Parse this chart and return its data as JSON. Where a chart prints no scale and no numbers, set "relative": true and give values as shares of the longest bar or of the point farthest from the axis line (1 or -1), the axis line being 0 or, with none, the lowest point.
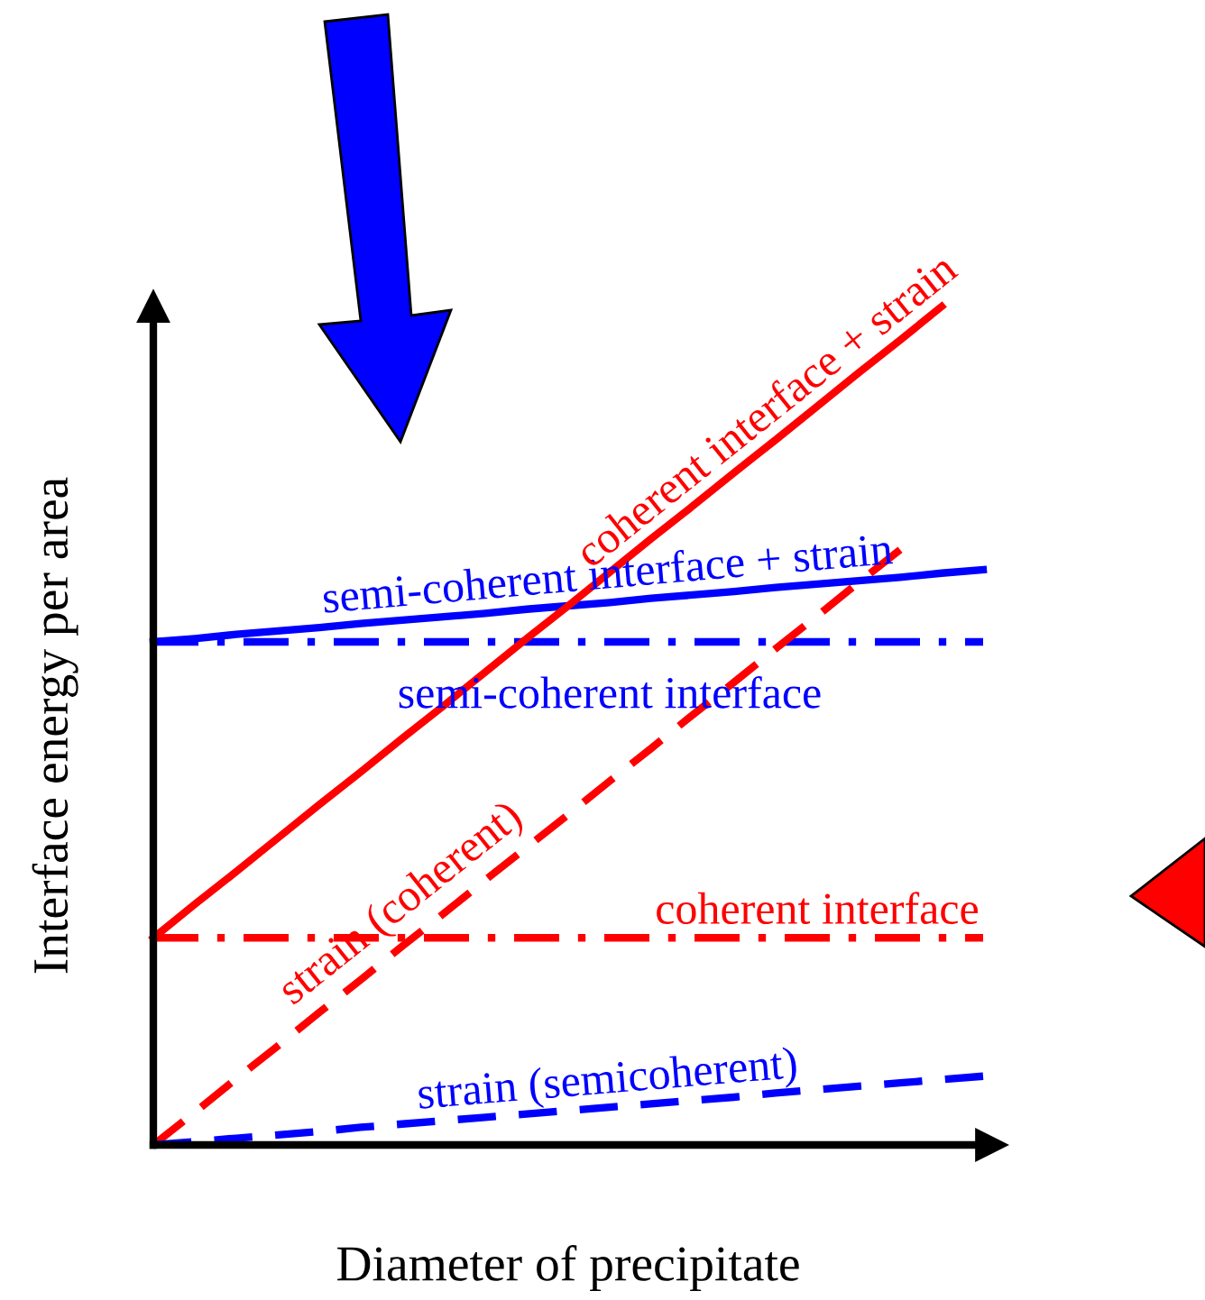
{
  "chart_data": {
    "type": "line",
    "relative": true,
    "xlabel": "Diameter of precipitate",
    "ylabel": "Interface energy per area",
    "categories": [
      null,
      null,
      null,
      null,
      null,
      null,
      null,
      null,
      null,
      null,
      null,
      null,
      null,
      null,
      null,
      null,
      null,
      null,
      null,
      null,
      null
    ],
    "series": [
      {
        "name": "semi-coherent interface + strain",
        "color": "#0000ff",
        "line_style": "solid",
        "values": [
          0.6,
          0.604,
          0.609,
          0.613,
          0.617,
          0.622,
          0.626,
          0.63,
          0.634,
          0.639,
          0.643,
          0.647,
          0.652,
          0.656,
          0.66,
          0.665,
          0.669,
          0.673,
          0.677,
          0.682,
          0.686
        ]
      },
      {
        "name": "semi-coherent interface",
        "color": "#0000ff",
        "line_style": "dashdot",
        "values": [
          0.6,
          0.6,
          0.6,
          0.6,
          0.6,
          0.6,
          0.6,
          0.6,
          0.6,
          0.6,
          0.6,
          0.6,
          0.6,
          0.6,
          0.6,
          0.6,
          0.6,
          0.6,
          0.6,
          0.6,
          0.6
        ]
      },
      {
        "name": "coherent interface + strain",
        "color": "#ff0000",
        "line_style": "solid",
        "values": [
          0.247,
          0.287,
          0.326,
          0.366,
          0.406,
          0.445,
          0.485,
          0.524,
          0.564,
          0.604,
          0.643,
          0.683,
          0.723,
          0.762,
          0.802,
          0.841,
          0.881,
          0.921,
          0.96,
          1.0,
          null
        ]
      },
      {
        "name": "coherent interface",
        "color": "#ff0000",
        "line_style": "dashdot",
        "values": [
          0.247,
          0.247,
          0.247,
          0.247,
          0.247,
          0.247,
          0.247,
          0.247,
          0.247,
          0.247,
          0.247,
          0.247,
          0.247,
          0.247,
          0.247,
          0.247,
          0.247,
          0.247,
          0.247,
          0.247,
          0.247
        ]
      },
      {
        "name": "strain (coherent)",
        "color": "#ff0000",
        "line_style": "dashed",
        "values": [
          0,
          0.039,
          0.079,
          0.118,
          0.158,
          0.197,
          0.237,
          0.276,
          0.316,
          0.355,
          0.394,
          0.434,
          0.473,
          0.513,
          0.552,
          0.592,
          0.631,
          0.671,
          0.71,
          null,
          null
        ]
      },
      {
        "name": "strain (semicoherent)",
        "color": "#0000ff",
        "line_style": "dashed",
        "values": [
          0,
          0.004,
          0.008,
          0.012,
          0.016,
          0.021,
          0.025,
          0.029,
          0.033,
          0.037,
          0.041,
          0.045,
          0.049,
          0.053,
          0.057,
          0.062,
          0.066,
          0.07,
          0.074,
          0.078,
          0.082
        ]
      }
    ]
  }
}
